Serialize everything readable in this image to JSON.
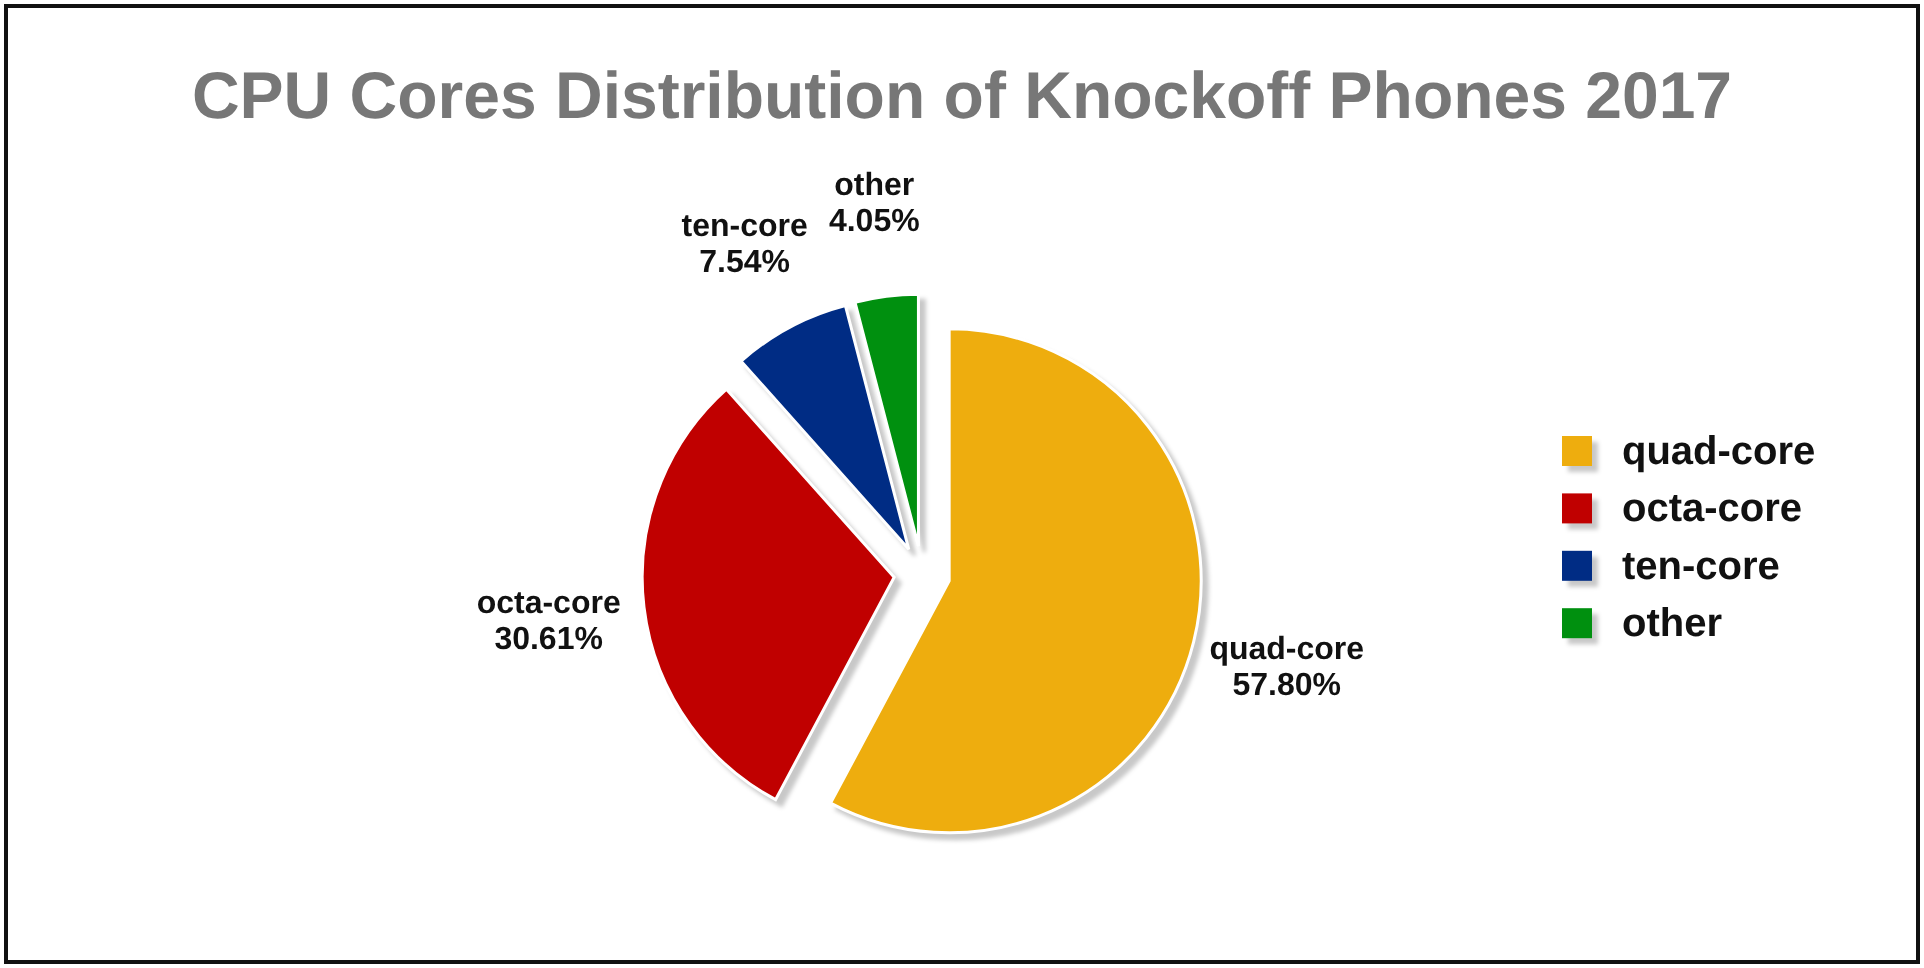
{
  "chart_data": {
    "type": "pie",
    "title": "CPU Cores Distribution of Knockoff Phones 2017",
    "categories": [
      "quad-core",
      "octa-core",
      "ten-core",
      "other"
    ],
    "values": [
      57.8,
      30.61,
      7.54,
      4.05
    ],
    "colors": [
      "#eead0e",
      "#c00000",
      "#002c84",
      "#00900f"
    ],
    "value_labels": [
      "57.80%",
      "30.61%",
      "7.54%",
      "4.05%"
    ],
    "legend": "right"
  }
}
